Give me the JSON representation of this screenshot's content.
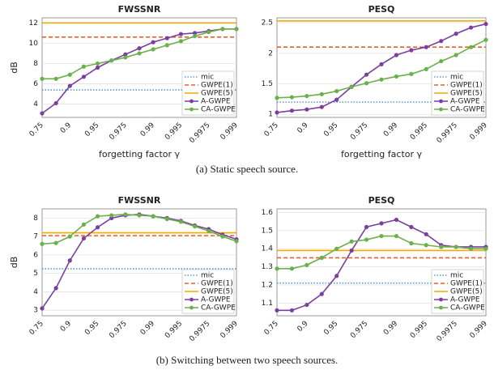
{
  "chart_data": [
    {
      "type": "line",
      "title": "FWSSNR",
      "ylabel": "dB",
      "xlabel": "forgetting factor γ",
      "categories": [
        "0.75",
        null,
        "0.9",
        null,
        "0.95",
        null,
        "0.975",
        null,
        "0.99",
        null,
        "0.995",
        null,
        "0.9975",
        null,
        "0.999"
      ],
      "ylim": [
        2.7,
        12.5
      ],
      "yticks": [
        4,
        6,
        8,
        10,
        12
      ],
      "grid": true,
      "legend": "lower right",
      "series": [
        {
          "name": "mic",
          "color": "#5b9bd5",
          "dash": "dotted",
          "value": 5.4
        },
        {
          "name": "GWPE(1)",
          "color": "#e8602c",
          "dash": "dashed",
          "value": 10.6
        },
        {
          "name": "GWPE(5)",
          "color": "#f2a900",
          "dash": "solid",
          "value": 12.0
        },
        {
          "name": "A-GWPE",
          "color": "#7b3fa0",
          "values": [
            3.1,
            4.1,
            5.8,
            6.7,
            7.6,
            8.3,
            8.9,
            9.5,
            10.1,
            10.5,
            10.9,
            11.0,
            11.2,
            11.4,
            11.4
          ]
        },
        {
          "name": "CA-GWPE",
          "color": "#6ab04c",
          "values": [
            6.5,
            6.5,
            6.9,
            7.7,
            8.0,
            8.3,
            8.6,
            9.0,
            9.4,
            9.8,
            10.2,
            10.7,
            11.1,
            11.4,
            11.4
          ]
        }
      ]
    },
    {
      "type": "line",
      "title": "PESQ",
      "xlabel": "forgetting factor γ",
      "categories": [
        "0.75",
        null,
        "0.9",
        null,
        "0.95",
        null,
        "0.975",
        null,
        "0.99",
        null,
        "0.995",
        null,
        "0.9975",
        null,
        "0.999"
      ],
      "ylim": [
        0.95,
        2.58
      ],
      "yticks": [
        1,
        1.5,
        2,
        2.5
      ],
      "grid": true,
      "legend": "lower right",
      "series": [
        {
          "name": "mic",
          "color": "#5b9bd5",
          "dash": "dotted",
          "value": 1.2
        },
        {
          "name": "GWPE(1)",
          "color": "#e8602c",
          "dash": "dashed",
          "value": 2.1
        },
        {
          "name": "GWPE(5)",
          "color": "#f2a900",
          "dash": "solid",
          "value": 2.53
        },
        {
          "name": "A-GWPE",
          "color": "#7b3fa0",
          "values": [
            1.03,
            1.06,
            1.08,
            1.12,
            1.24,
            1.45,
            1.65,
            1.82,
            1.97,
            2.05,
            2.1,
            2.2,
            2.32,
            2.42,
            2.48
          ]
        },
        {
          "name": "CA-GWPE",
          "color": "#6ab04c",
          "values": [
            1.27,
            1.28,
            1.3,
            1.33,
            1.38,
            1.45,
            1.51,
            1.57,
            1.62,
            1.66,
            1.74,
            1.87,
            1.97,
            2.1,
            2.22
          ]
        }
      ]
    },
    {
      "type": "line",
      "title": "FWSSNR",
      "ylabel": "dB",
      "categories": [
        "0.75",
        null,
        "0.9",
        null,
        "0.95",
        null,
        "0.975",
        null,
        "0.99",
        null,
        "0.995",
        null,
        "0.9975",
        null,
        "0.999"
      ],
      "ylim": [
        2.7,
        8.5
      ],
      "yticks": [
        3,
        4,
        5,
        6,
        7,
        8
      ],
      "grid": true,
      "legend": "lower right",
      "series": [
        {
          "name": "mic",
          "color": "#5b9bd5",
          "dash": "dotted",
          "value": 5.25
        },
        {
          "name": "GWPE(1)",
          "color": "#e8602c",
          "dash": "dashed",
          "value": 7.05
        },
        {
          "name": "GWPE(5)",
          "color": "#f2a900",
          "dash": "solid",
          "value": 7.2
        },
        {
          "name": "A-GWPE",
          "color": "#7b3fa0",
          "values": [
            3.1,
            4.2,
            5.7,
            6.9,
            7.5,
            8.0,
            8.15,
            8.2,
            8.1,
            8.0,
            7.85,
            7.6,
            7.4,
            7.1,
            6.85
          ]
        },
        {
          "name": "CA-GWPE",
          "color": "#6ab04c",
          "values": [
            6.6,
            6.65,
            7.0,
            7.65,
            8.1,
            8.15,
            8.2,
            8.15,
            8.1,
            7.95,
            7.8,
            7.55,
            7.3,
            7.0,
            6.75
          ]
        }
      ]
    },
    {
      "type": "line",
      "title": "PESQ",
      "categories": [
        "0.75",
        null,
        "0.9",
        null,
        "0.95",
        null,
        "0.975",
        null,
        "0.99",
        null,
        "0.995",
        null,
        "0.9975",
        null,
        "0.999"
      ],
      "ylim": [
        1.03,
        1.62
      ],
      "yticks": [
        1.1,
        1.2,
        1.3,
        1.4,
        1.5,
        1.6
      ],
      "grid": true,
      "legend": "lower right",
      "series": [
        {
          "name": "mic",
          "color": "#5b9bd5",
          "dash": "dotted",
          "value": 1.21
        },
        {
          "name": "GWPE(1)",
          "color": "#e8602c",
          "dash": "dashed",
          "value": 1.35
        },
        {
          "name": "GWPE(5)",
          "color": "#f2a900",
          "dash": "solid",
          "value": 1.39
        },
        {
          "name": "A-GWPE",
          "color": "#7b3fa0",
          "values": [
            1.06,
            1.06,
            1.09,
            1.15,
            1.25,
            1.39,
            1.52,
            1.54,
            1.56,
            1.52,
            1.48,
            1.42,
            1.41,
            1.41,
            1.41
          ]
        },
        {
          "name": "CA-GWPE",
          "color": "#6ab04c",
          "values": [
            1.29,
            1.29,
            1.31,
            1.35,
            1.4,
            1.44,
            1.45,
            1.47,
            1.47,
            1.43,
            1.42,
            1.41,
            1.41,
            1.4,
            1.4
          ]
        }
      ]
    }
  ],
  "captions": [
    "(a) Static speech source.",
    "(b) Switching between two speech sources."
  ]
}
